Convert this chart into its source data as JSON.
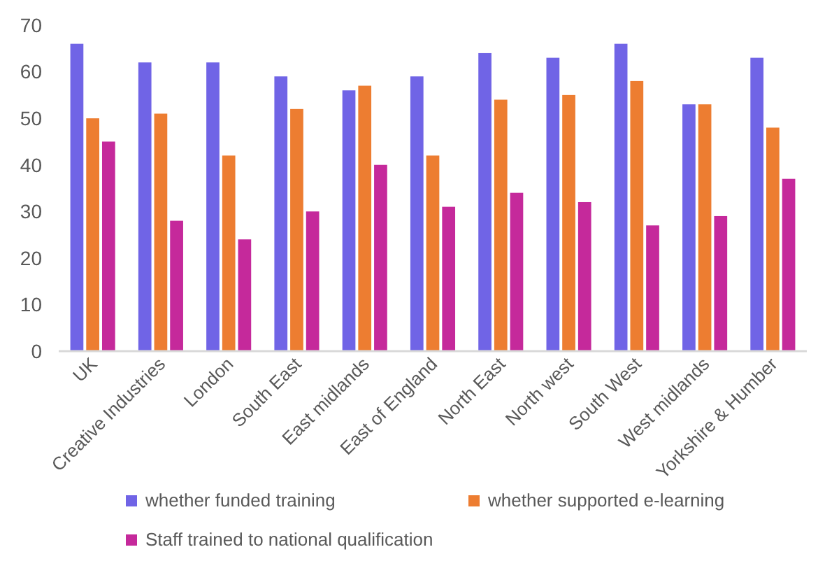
{
  "chart_data": {
    "type": "bar",
    "categories": [
      "UK",
      "Creative Industries",
      "London",
      "South East",
      "East midlands",
      "East of England",
      "North East",
      "North west",
      "South West",
      "West midlands",
      "Yorkshire & Humber"
    ],
    "series": [
      {
        "name": "whether funded training",
        "color": "#7064e6",
        "values": [
          66,
          62,
          62,
          59,
          56,
          59,
          64,
          63,
          66,
          53,
          63
        ]
      },
      {
        "name": "whether supported e-learning",
        "color": "#ed7d31",
        "values": [
          50,
          51,
          42,
          52,
          57,
          42,
          54,
          55,
          58,
          53,
          48
        ]
      },
      {
        "name": "Staff trained to national qualification",
        "color": "#c5299b",
        "values": [
          45,
          28,
          24,
          30,
          40,
          31,
          34,
          32,
          27,
          29,
          37
        ]
      }
    ],
    "ylim": [
      0,
      70
    ],
    "yticks": [
      0,
      10,
      20,
      30,
      40,
      50,
      60,
      70
    ],
    "grid": false,
    "legend": "bottom"
  }
}
